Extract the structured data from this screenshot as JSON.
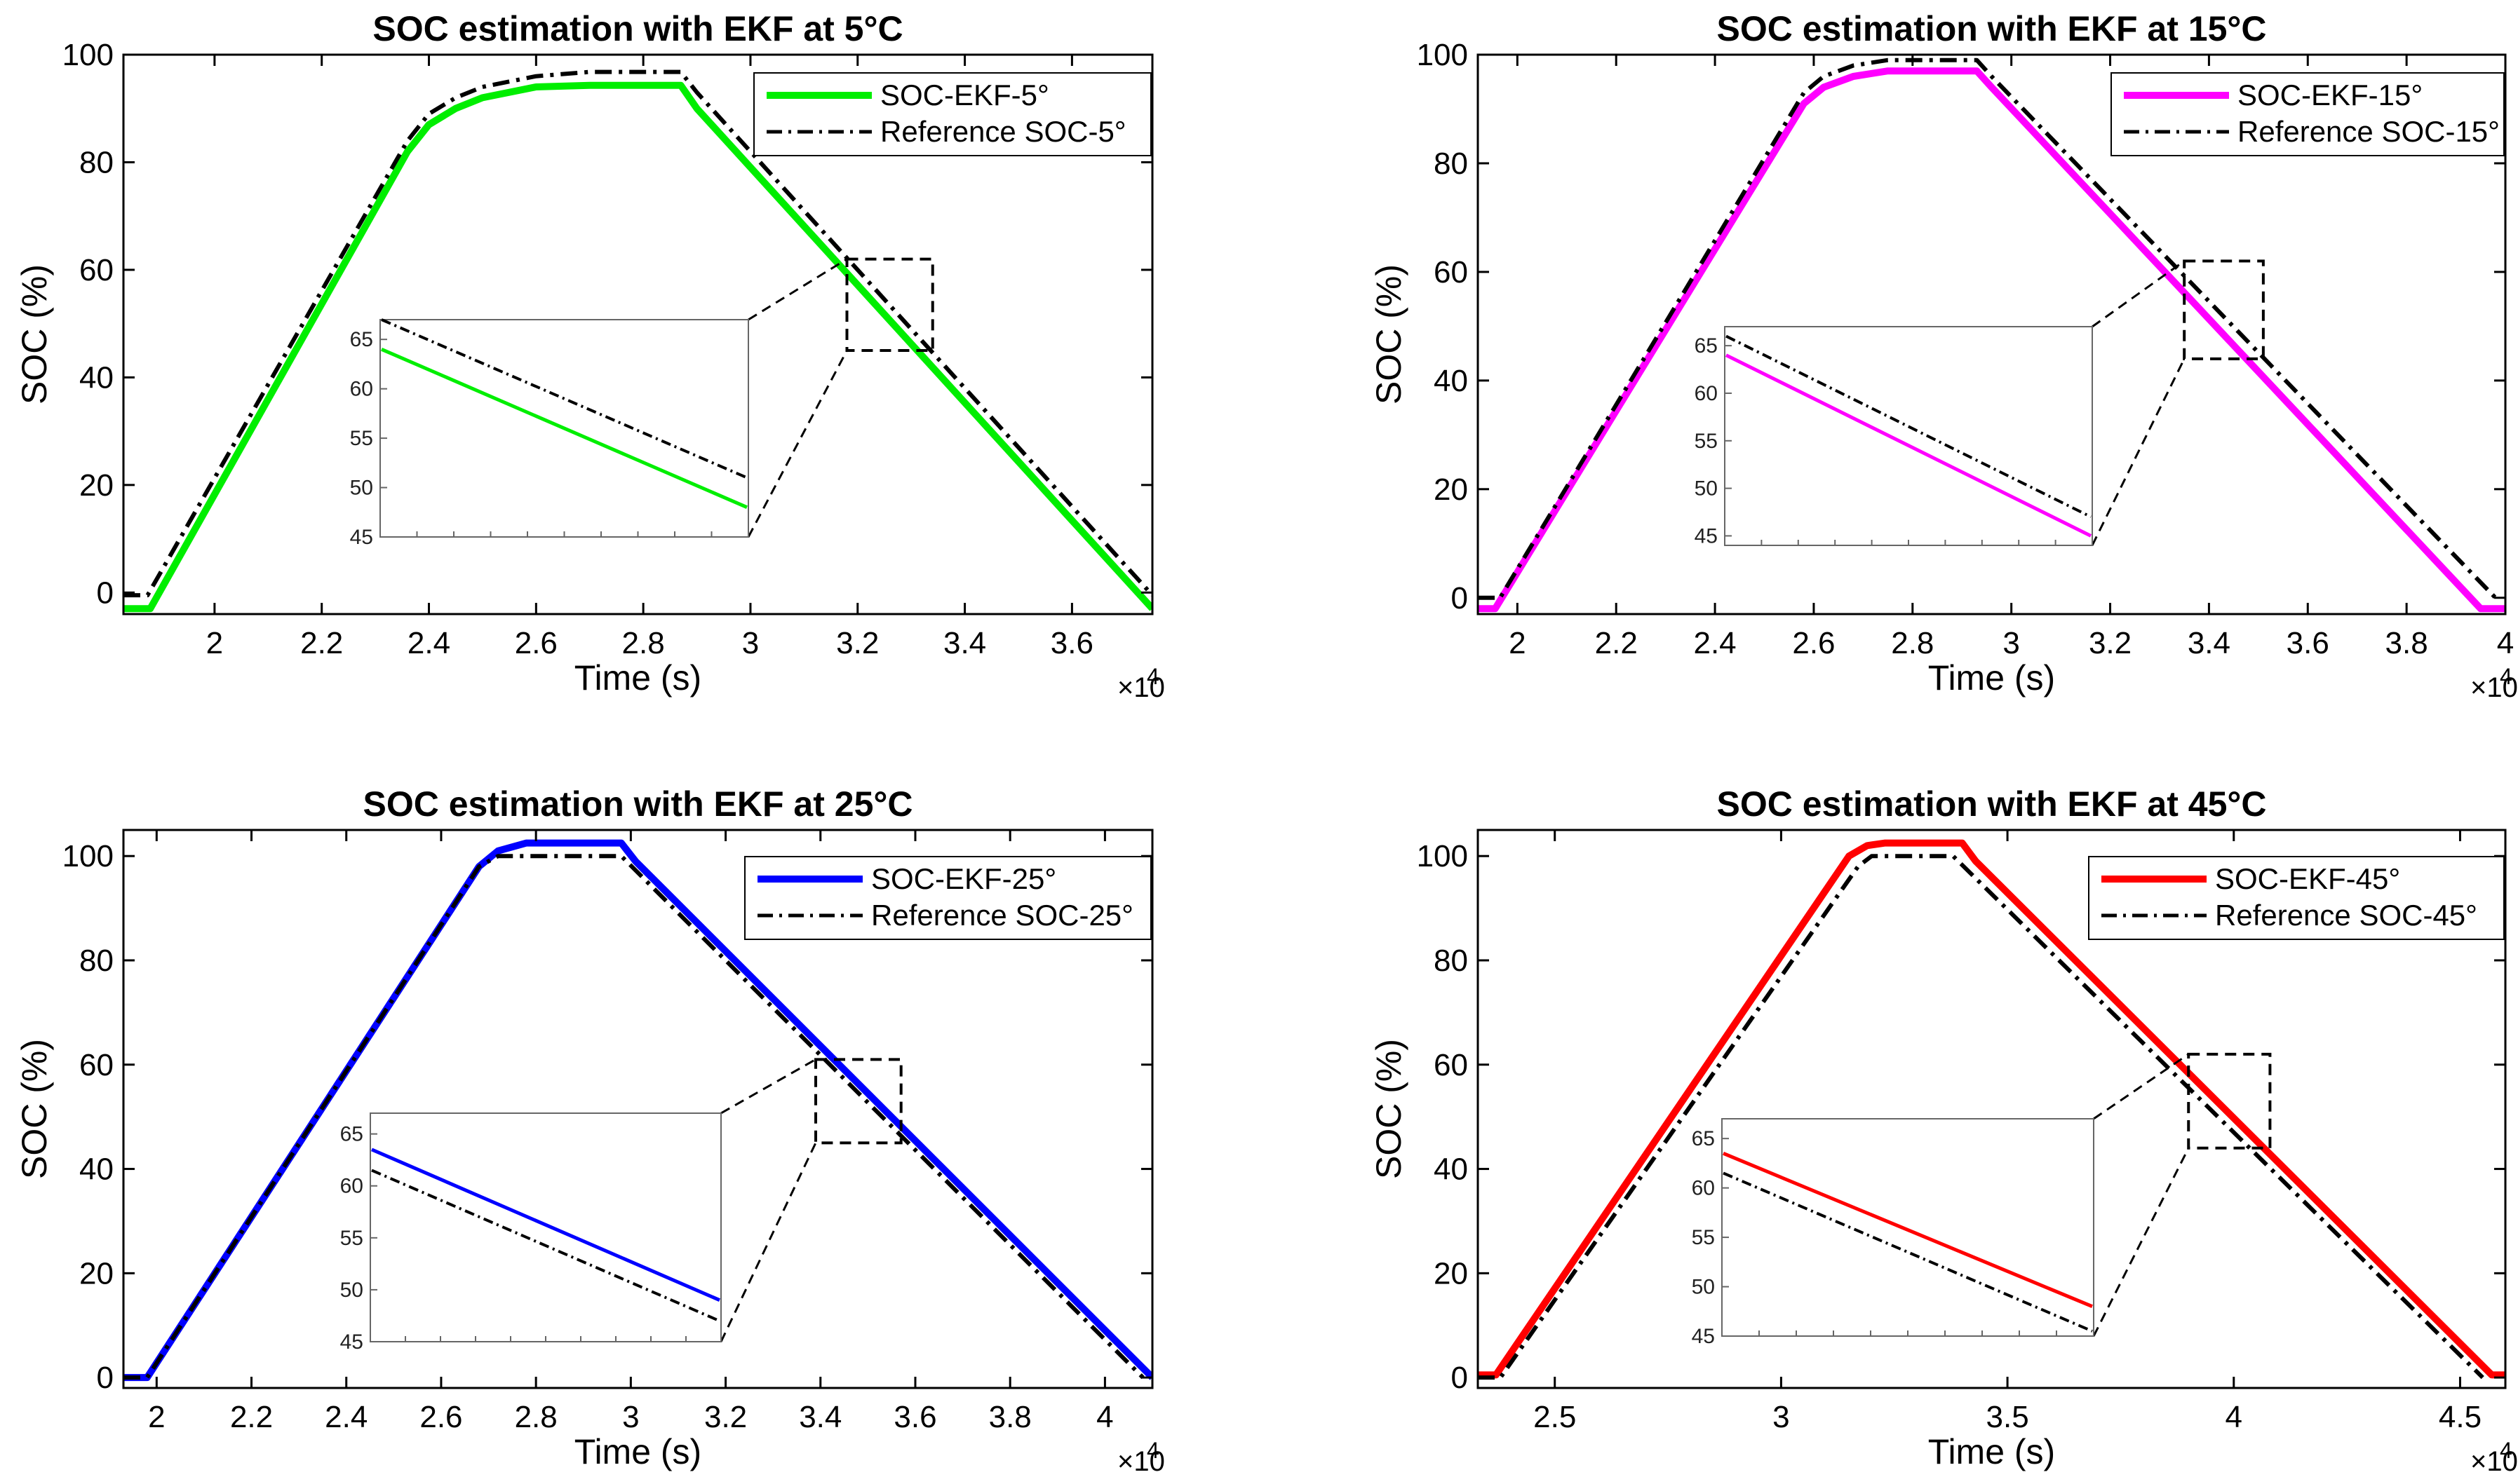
{
  "figure": {
    "layout": "2x2 grid of line charts with zoomed insets"
  },
  "chart_data": [
    {
      "type": "line",
      "title": "SOC estimation with EKF at 5°C",
      "xlabel": "Time (s)",
      "ylabel": "SOC (%)",
      "x_exponent_label": "×10",
      "x_exponent_power": "4",
      "xlim": [
        1.83,
        3.75
      ],
      "ylim": [
        -4,
        100
      ],
      "xticks": [
        2,
        2.2,
        2.4,
        2.6,
        2.8,
        3,
        3.2,
        3.4,
        3.6
      ],
      "xtick_labels": [
        "2",
        "2.2",
        "2.4",
        "2.6",
        "2.8",
        "3",
        "3.2",
        "3.4",
        "3.6"
      ],
      "yticks": [
        0,
        20,
        40,
        60,
        80,
        100
      ],
      "ytick_labels": [
        "0",
        "20",
        "40",
        "60",
        "80",
        "100"
      ],
      "legend_position": "top-right",
      "series": [
        {
          "name": "SOC-EKF-5°",
          "color": "#00ee00",
          "style": "solid",
          "x": [
            1.83,
            1.88,
            2.36,
            2.4,
            2.45,
            2.5,
            2.6,
            2.7,
            2.87,
            2.9,
            3.75
          ],
          "y": [
            -3,
            -3,
            82,
            87,
            90,
            92,
            94,
            94.3,
            94.3,
            90,
            -3
          ]
        },
        {
          "name": "Reference SOC-5°",
          "color": "#000000",
          "style": "dashdot",
          "x": [
            1.83,
            1.875,
            2.36,
            2.4,
            2.45,
            2.5,
            2.6,
            2.7,
            2.87,
            2.9,
            3.75
          ],
          "y": [
            -0.5,
            -0.5,
            84,
            89,
            92,
            94,
            96,
            96.8,
            96.8,
            93,
            -0.5
          ]
        }
      ],
      "zoom_box": {
        "x": [
          3.18,
          3.34
        ],
        "y": [
          45,
          62
        ]
      },
      "inset": {
        "ylim": [
          45,
          67
        ],
        "yticks": [
          45,
          50,
          55,
          60,
          65
        ],
        "ytick_labels": [
          "45",
          "50",
          "55",
          "60",
          "65"
        ],
        "series_y": {
          "SOC-EKF-5°": [
            64,
            48
          ],
          "Reference SOC-5°": [
            67,
            51
          ]
        }
      }
    },
    {
      "type": "line",
      "title": "SOC estimation with EKF at 15°C",
      "xlabel": "Time (s)",
      "ylabel": "SOC (%)",
      "x_exponent_label": "×10",
      "x_exponent_power": "4",
      "xlim": [
        1.92,
        4.0
      ],
      "ylim": [
        -3,
        100
      ],
      "xticks": [
        2,
        2.2,
        2.4,
        2.6,
        2.8,
        3,
        3.2,
        3.4,
        3.6,
        3.8,
        4
      ],
      "xtick_labels": [
        "2",
        "2.2",
        "2.4",
        "2.6",
        "2.8",
        "3",
        "3.2",
        "3.4",
        "3.6",
        "3.8",
        "4"
      ],
      "yticks": [
        0,
        20,
        40,
        60,
        80,
        100
      ],
      "ytick_labels": [
        "0",
        "20",
        "40",
        "60",
        "80",
        "100"
      ],
      "legend_position": "top-right",
      "series": [
        {
          "name": "SOC-EKF-15°",
          "color": "#ff00ff",
          "style": "solid",
          "x": [
            1.92,
            1.955,
            2.58,
            2.62,
            2.68,
            2.75,
            2.93,
            2.96,
            3.95,
            4.0
          ],
          "y": [
            -2,
            -2,
            91,
            94,
            96,
            97,
            97,
            94,
            -2,
            -2
          ]
        },
        {
          "name": "Reference SOC-15°",
          "color": "#000000",
          "style": "dashdot",
          "x": [
            1.92,
            1.965,
            2.58,
            2.62,
            2.68,
            2.75,
            2.93,
            2.96,
            3.98
          ],
          "y": [
            0,
            0,
            93,
            96,
            98,
            99,
            99,
            96,
            0
          ]
        }
      ],
      "zoom_box": {
        "x": [
          3.35,
          3.51
        ],
        "y": [
          44,
          62
        ]
      },
      "inset": {
        "ylim": [
          44,
          67
        ],
        "yticks": [
          45,
          50,
          55,
          60,
          65
        ],
        "ytick_labels": [
          "45",
          "50",
          "55",
          "60",
          "65"
        ],
        "series_y": {
          "SOC-EKF-15°": [
            64,
            45
          ],
          "Reference SOC-15°": [
            66,
            47
          ]
        }
      }
    },
    {
      "type": "line",
      "title": "SOC estimation with EKF at 25°C",
      "xlabel": "Time (s)",
      "ylabel": "SOC (%)",
      "x_exponent_label": "×10",
      "x_exponent_power": "4",
      "xlim": [
        1.93,
        4.1
      ],
      "ylim": [
        -2,
        105
      ],
      "xticks": [
        2,
        2.2,
        2.4,
        2.6,
        2.8,
        3,
        3.2,
        3.4,
        3.6,
        3.8,
        4
      ],
      "xtick_labels": [
        "2",
        "2.2",
        "2.4",
        "2.6",
        "2.8",
        "3",
        "3.2",
        "3.4",
        "3.6",
        "3.8",
        "4"
      ],
      "yticks": [
        0,
        20,
        40,
        60,
        80,
        100
      ],
      "ytick_labels": [
        "0",
        "20",
        "40",
        "60",
        "80",
        "100"
      ],
      "legend_position": "top-right",
      "series": [
        {
          "name": "SOC-EKF-25°",
          "color": "#0000ff",
          "style": "solid",
          "x": [
            1.93,
            1.98,
            2.68,
            2.72,
            2.78,
            2.98,
            3.01,
            4.1
          ],
          "y": [
            0,
            0,
            98,
            101,
            102.5,
            102.5,
            99,
            0
          ]
        },
        {
          "name": "Reference SOC-25°",
          "color": "#000000",
          "style": "dashdot",
          "x": [
            1.93,
            1.98,
            2.68,
            2.72,
            2.98,
            4.08
          ],
          "y": [
            0,
            0,
            98,
            100,
            100,
            0
          ]
        }
      ],
      "zoom_box": {
        "x": [
          3.39,
          3.57
        ],
        "y": [
          45,
          61
        ]
      },
      "inset": {
        "ylim": [
          45,
          67
        ],
        "yticks": [
          45,
          50,
          55,
          60,
          65
        ],
        "ytick_labels": [
          "45",
          "50",
          "55",
          "60",
          "65"
        ],
        "series_y": {
          "SOC-EKF-25°": [
            63.5,
            49
          ],
          "Reference SOC-25°": [
            61.5,
            47
          ]
        }
      }
    },
    {
      "type": "line",
      "title": "SOC estimation with EKF at 45°C",
      "xlabel": "Time (s)",
      "ylabel": "SOC (%)",
      "x_exponent_label": "×10",
      "x_exponent_power": "4",
      "xlim": [
        2.33,
        4.6
      ],
      "ylim": [
        -2,
        105
      ],
      "xticks": [
        2.5,
        3,
        3.5,
        4,
        4.5
      ],
      "xtick_labels": [
        "2.5",
        "3",
        "3.5",
        "4",
        "4.5"
      ],
      "yticks": [
        0,
        20,
        40,
        60,
        80,
        100
      ],
      "ytick_labels": [
        "0",
        "20",
        "40",
        "60",
        "80",
        "100"
      ],
      "legend_position": "top-right",
      "series": [
        {
          "name": "SOC-EKF-45°",
          "color": "#ff0000",
          "style": "solid",
          "x": [
            2.33,
            2.37,
            3.15,
            3.19,
            3.23,
            3.4,
            3.43,
            4.57,
            4.6
          ],
          "y": [
            0.5,
            0.5,
            100,
            102,
            102.5,
            102.5,
            99,
            0.5,
            0.5
          ]
        },
        {
          "name": "Reference SOC-45°",
          "color": "#000000",
          "style": "dashdot",
          "x": [
            2.33,
            2.38,
            3.17,
            3.2,
            3.38,
            4.55
          ],
          "y": [
            0,
            0,
            98,
            100,
            100,
            0
          ]
        }
      ],
      "zoom_box": {
        "x": [
          3.9,
          4.08
        ],
        "y": [
          44,
          62
        ]
      },
      "inset": {
        "ylim": [
          45,
          67
        ],
        "yticks": [
          45,
          50,
          55,
          60,
          65
        ],
        "ytick_labels": [
          "45",
          "50",
          "55",
          "60",
          "65"
        ],
        "series_y": {
          "SOC-EKF-45°": [
            63.5,
            48
          ],
          "Reference SOC-45°": [
            61.5,
            45.5
          ]
        }
      }
    }
  ]
}
